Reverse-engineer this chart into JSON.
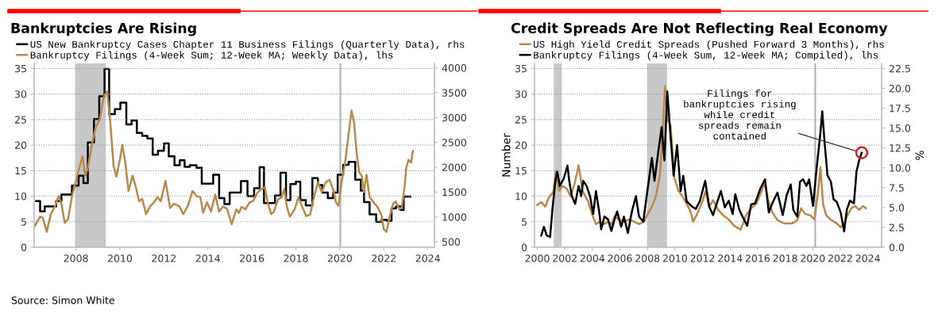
{
  "chart_data": [
    {
      "type": "line",
      "title": "Bankruptcies Are Rising",
      "legend": "top left",
      "grid": "y",
      "xlim": [
        2006.1,
        2024.3
      ],
      "xticks": [
        2008,
        2010,
        2012,
        2014,
        2016,
        2018,
        2020,
        2022,
        2024
      ],
      "ylim": [
        0,
        36
      ],
      "yticks": [
        0,
        5,
        10,
        15,
        20,
        25,
        30,
        35
      ],
      "y2lim": [
        390,
        4090
      ],
      "y2ticks": [
        500,
        1000,
        1500,
        2000,
        2500,
        3000,
        3500,
        4000
      ],
      "bands": [
        {
          "axis": "x",
          "from": 2007.96,
          "to": 2009.36,
          "color": "#c8c8c8"
        }
      ],
      "ref_lines": [
        {
          "axis": "x",
          "value": 2020.02,
          "color": "#b0b0b0"
        }
      ],
      "annotations": [
        "Source: Simon White"
      ],
      "series": [
        {
          "name": "US New Bankruptcy Cases Chapter 11 Business Filings (Quarterly Data), rhs",
          "type": "step",
          "axis": "y2",
          "color": "#000000",
          "x": [
            2006.19,
            2006.37,
            2006.58,
            2007.1,
            2007.34,
            2007.82,
            2008.12,
            2008.34,
            2008.54,
            2008.82,
            2009.06,
            2009.3,
            2009.51,
            2009.77,
            2010.02,
            2010.29,
            2010.53,
            2010.77,
            2011.01,
            2011.25,
            2011.49,
            2011.73,
            2012.0,
            2012.22,
            2012.48,
            2012.72,
            2012.94,
            2013.18,
            2013.48,
            2013.72,
            2014.24,
            2014.51,
            2014.75,
            2014.99,
            2015.5,
            2015.8,
            2016.1,
            2016.35,
            2016.55,
            2017.05,
            2017.3,
            2017.55,
            2017.75,
            2018.0,
            2018.2,
            2018.45,
            2018.75,
            2019.0,
            2019.2,
            2019.45,
            2019.7,
            2019.9,
            2020.15,
            2020.4,
            2020.7,
            2020.95,
            2021.1,
            2021.35,
            2021.65,
            2021.9,
            2022.15,
            2022.35,
            2022.55,
            2022.75,
            2022.9,
            2023.2
          ],
          "values": [
            1320,
            1110,
            1210,
            1320,
            1450,
            1630,
            1830,
            1680,
            2500,
            2970,
            3430,
            3980,
            3070,
            3170,
            3300,
            2860,
            2940,
            2690,
            2630,
            2580,
            2250,
            2330,
            2480,
            2220,
            2040,
            2140,
            2010,
            2040,
            1990,
            1670,
            1850,
            1380,
            1260,
            1490,
            1720,
            1420,
            1580,
            2000,
            1280,
            1430,
            1890,
            1340,
            1660,
            1710,
            1340,
            1230,
            1780,
            1640,
            1490,
            1380,
            1490,
            1850,
            2050,
            2110,
            1750,
            1530,
            1300,
            1050,
            900,
            940,
            920,
            1170,
            1210,
            1140,
            1410,
            1410
          ]
        },
        {
          "name": "Bankruptcy Filings (4-Week Sum; 12-Week MA; Weekly Data), lhs",
          "color": "#b8894a",
          "x": [
            2006.13,
            2006.37,
            2006.49,
            2006.67,
            2006.86,
            2007.04,
            2007.22,
            2007.34,
            2007.49,
            2007.64,
            2007.82,
            2008.0,
            2008.12,
            2008.3,
            2008.42,
            2008.54,
            2008.72,
            2008.9,
            2009.08,
            2009.27,
            2009.42,
            2009.57,
            2009.71,
            2009.84,
            2009.99,
            2010.11,
            2010.23,
            2010.39,
            2010.57,
            2010.71,
            2010.87,
            2011.01,
            2011.19,
            2011.37,
            2011.55,
            2011.71,
            2011.86,
            2012.07,
            2012.28,
            2012.46,
            2012.7,
            2012.88,
            2013.08,
            2013.3,
            2013.48,
            2013.66,
            2013.78,
            2013.96,
            2014.14,
            2014.33,
            2014.51,
            2014.69,
            2014.87,
            2015.08,
            2015.29,
            2015.41,
            2015.53,
            2015.71,
            2015.88,
            2016.06,
            2016.24,
            2016.41,
            2016.59,
            2016.71,
            2016.88,
            2017.0,
            2017.18,
            2017.35,
            2017.47,
            2017.59,
            2017.73,
            2017.94,
            2018.12,
            2018.29,
            2018.47,
            2018.65,
            2018.82,
            2019.0,
            2019.18,
            2019.35,
            2019.53,
            2019.71,
            2019.82,
            2019.94,
            2020.06,
            2020.24,
            2020.35,
            2020.53,
            2020.65,
            2020.76,
            2020.88,
            2021.0,
            2021.09,
            2021.21,
            2021.35,
            2021.53,
            2021.71,
            2021.88,
            2022.0,
            2022.12,
            2022.24,
            2022.41,
            2022.53,
            2022.71,
            2022.82,
            2022.94,
            2023.02,
            2023.12,
            2023.24,
            2023.32
          ],
          "values": [
            4.2,
            6,
            5.8,
            3,
            6.5,
            8,
            10,
            8.5,
            4.8,
            5.5,
            10,
            13,
            15,
            17.8,
            14,
            15.5,
            20,
            23.5,
            25,
            29.5,
            30.5,
            24,
            16,
            13.8,
            17,
            20,
            17,
            11,
            14,
            12,
            9,
            9.5,
            6.5,
            8,
            8.8,
            9.8,
            9,
            13,
            7.7,
            8.5,
            8,
            6.5,
            8,
            11,
            10,
            9.8,
            6.8,
            8.8,
            7,
            10.3,
            7,
            8,
            7.5,
            4.5,
            7.4,
            6.7,
            7.9,
            7.4,
            8.7,
            9.1,
            10.6,
            11.3,
            11.8,
            8.8,
            6.5,
            6.9,
            9.3,
            9.8,
            11.4,
            7.9,
            6,
            7.4,
            9.8,
            7.9,
            6.1,
            6.4,
            9.8,
            12.7,
            10.8,
            12.7,
            13.2,
            11.1,
            8.8,
            8.1,
            12.2,
            16.6,
            20.5,
            26.8,
            24.3,
            18.5,
            14.7,
            13.9,
            10.8,
            14.2,
            9.8,
            8.8,
            7.9,
            6.4,
            3.5,
            3,
            5.5,
            8.4,
            9,
            7.4,
            7.9,
            11.8,
            15.6,
            17.1,
            16.6,
            18.8
          ]
        }
      ]
    },
    {
      "type": "line",
      "title": "Credit Spreads Are Not Reflecting Real Economy",
      "legend": "top left",
      "grid": "y",
      "ylabel": "Number",
      "y2label": "%",
      "xlim": [
        1999.8,
        2025
      ],
      "xticks": [
        2000,
        2002,
        2004,
        2006,
        2008,
        2010,
        2012,
        2014,
        2016,
        2018,
        2020,
        2022,
        2024
      ],
      "ylim": [
        0,
        36
      ],
      "yticks": [
        0,
        5,
        10,
        15,
        20,
        25,
        30,
        35
      ],
      "y2lim": [
        0,
        23.14
      ],
      "y2ticks": [
        {
          "value": 0,
          "label": "0.0"
        },
        {
          "value": 2.5,
          "label": "2.5"
        },
        {
          "value": 5,
          "label": "5.0"
        },
        {
          "value": 7.5,
          "label": "7.5"
        },
        {
          "value": 10,
          "label": "10.0"
        },
        {
          "value": 12.5,
          "label": "12.5"
        },
        {
          "value": 15,
          "label": "15.0"
        },
        {
          "value": 17.5,
          "label": "17.5"
        },
        {
          "value": 20,
          "label": "20.0"
        },
        {
          "value": 22.5,
          "label": "22.5"
        }
      ],
      "bands": [
        {
          "axis": "x",
          "from": 2001.2,
          "to": 2001.78,
          "color": "#c8c8c8"
        },
        {
          "axis": "x",
          "from": 2007.97,
          "to": 2009.42,
          "color": "#c8c8c8"
        }
      ],
      "ref_lines": [
        {
          "axis": "x",
          "value": 2020.18,
          "color": "#b0b0b0"
        }
      ],
      "annotations": [
        {
          "text": "Filings for\nbankruptcies rising\nwhile credit\nspreads remain\ncontained",
          "x": 2023.56,
          "y": 18.5
        }
      ],
      "series": [
        {
          "name": "US High Yield Credit Spreads (Pushed Forward 3 Months), rhs",
          "axis": "y2",
          "color": "#b8894a",
          "x": [
            2000.0,
            2000.29,
            2000.58,
            2000.87,
            2001.16,
            2001.35,
            2001.59,
            2001.84,
            2002.13,
            2002.42,
            2002.71,
            2003.0,
            2003.29,
            2003.68,
            2003.97,
            2004.26,
            2004.55,
            2004.84,
            2005.13,
            2005.42,
            2005.61,
            2005.9,
            2006.29,
            2006.67,
            2007.06,
            2007.39,
            2007.74,
            2008.03,
            2008.32,
            2008.61,
            2008.9,
            2009.09,
            2009.28,
            2009.44,
            2009.67,
            2009.96,
            2010.25,
            2010.54,
            2010.84,
            2011.12,
            2011.32,
            2011.61,
            2012.0,
            2012.22,
            2012.48,
            2012.76,
            2013.14,
            2013.52,
            2013.9,
            2014.29,
            2014.76,
            2015.15,
            2015.53,
            2015.91,
            2016.2,
            2016.49,
            2016.77,
            2017.06,
            2017.44,
            2017.92,
            2018.49,
            2018.88,
            2019.16,
            2019.45,
            2019.83,
            2020.12,
            2020.37,
            2020.56,
            2020.75,
            2020.98,
            2021.36,
            2021.74,
            2022.03,
            2022.28,
            2022.51,
            2022.8,
            2023.08,
            2023.37,
            2023.66,
            2023.85
          ],
          "values": [
            5.3,
            5.7,
            5.1,
            6.4,
            6.9,
            9.5,
            7.1,
            7.7,
            7.4,
            6.4,
            8.0,
            10.3,
            7.1,
            5.8,
            4.2,
            2.9,
            3.2,
            2.9,
            3.2,
            2.9,
            3.9,
            3.5,
            3.2,
            3.5,
            3.2,
            2.9,
            3.2,
            4.2,
            5.1,
            6.4,
            9.0,
            14.1,
            20.3,
            16.1,
            15.4,
            8.7,
            7.1,
            6.4,
            5.5,
            4.5,
            3.2,
            4.2,
            5.8,
            7.1,
            5.1,
            5.9,
            4.7,
            4.0,
            3.5,
            2.7,
            2.2,
            4.0,
            4.9,
            5.5,
            6.7,
            8.1,
            5.9,
            4.4,
            3.4,
            3.0,
            3.0,
            3.4,
            4.9,
            4.2,
            4.0,
            3.5,
            6.7,
            10.1,
            5.4,
            4.0,
            3.4,
            3.0,
            2.5,
            3.0,
            4.0,
            4.9,
            5.2,
            4.7,
            5.2,
            4.9
          ]
        },
        {
          "name": "Bankruptcy Filings (4-Week Sum, 12-Week MA; Compiled), lhs",
          "color": "#000000",
          "x": [
            2000.29,
            2000.48,
            2000.68,
            2000.93,
            2001.12,
            2001.32,
            2001.45,
            2001.64,
            2001.93,
            2002.19,
            2002.32,
            2002.51,
            2002.75,
            2003.0,
            2003.19,
            2003.33,
            2003.58,
            2003.83,
            2004.06,
            2004.26,
            2004.49,
            2004.64,
            2004.87,
            2005.13,
            2005.38,
            2005.61,
            2005.8,
            2006.09,
            2006.29,
            2006.58,
            2006.87,
            2007.16,
            2007.39,
            2007.7,
            2007.89,
            2008.12,
            2008.32,
            2008.51,
            2008.8,
            2009.03,
            2009.23,
            2009.44,
            2009.67,
            2009.9,
            2010.15,
            2010.41,
            2010.6,
            2010.84,
            2011.22,
            2011.51,
            2011.8,
            2012.19,
            2012.48,
            2012.76,
            2013.33,
            2013.62,
            2013.9,
            2014.19,
            2014.38,
            2014.67,
            2015.05,
            2015.24,
            2015.53,
            2015.82,
            2016.2,
            2016.54,
            2016.81,
            2017.06,
            2017.44,
            2017.82,
            2018.11,
            2018.4,
            2018.59,
            2018.88,
            2019.07,
            2019.3,
            2019.54,
            2019.74,
            2020.02,
            2020.25,
            2020.56,
            2020.69,
            2020.88,
            2021.07,
            2021.32,
            2021.51,
            2021.74,
            2022.03,
            2022.28,
            2022.47,
            2022.7,
            2022.99,
            2023.18,
            2023.37,
            2023.56
          ],
          "values": [
            2.3,
            4,
            2.3,
            2,
            8,
            13,
            14.8,
            12,
            13.5,
            16,
            13,
            10,
            8.5,
            12,
            10,
            13,
            12,
            10,
            6.5,
            11,
            7,
            3.5,
            6,
            5.5,
            3.2,
            5.5,
            7,
            4,
            6,
            2.8,
            7,
            10,
            6,
            5,
            9,
            13.5,
            17.5,
            13,
            19,
            23.5,
            17,
            30.5,
            22,
            14,
            20,
            11,
            14,
            9,
            8,
            7.5,
            9,
            13,
            8,
            6.3,
            11,
            7.8,
            9.1,
            6.5,
            10.4,
            7.3,
            5.2,
            4.2,
            8.4,
            8.6,
            11.5,
            13.3,
            6.8,
            8.6,
            10.7,
            6.3,
            10.2,
            12.3,
            7.3,
            6.0,
            12.8,
            13.3,
            12,
            13.3,
            8.1,
            14.6,
            22.5,
            26.6,
            19.9,
            14.1,
            12.8,
            9.4,
            8.9,
            6.8,
            3.1,
            7.3,
            9.1,
            8.6,
            14.9,
            17,
            18.5
          ]
        }
      ]
    }
  ]
}
